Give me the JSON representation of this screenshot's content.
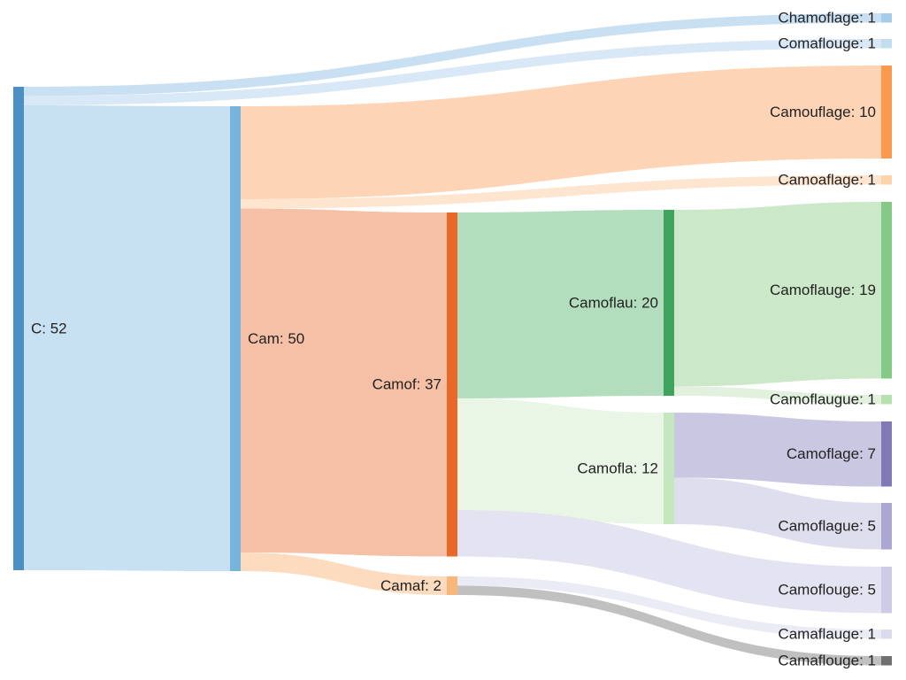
{
  "chart_data": {
    "type": "sankey",
    "title": "",
    "nodes": [
      {
        "id": "c",
        "label": "C: 52",
        "name": "C",
        "value": 52,
        "column": 0,
        "color": "#4a90c4"
      },
      {
        "id": "cam",
        "label": "Cam: 50",
        "name": "Cam",
        "value": 50,
        "column": 1,
        "color": "#76b4dc"
      },
      {
        "id": "chamoflage",
        "label": "Chamoflage: 1",
        "name": "Chamoflage",
        "value": 1,
        "column": 4,
        "color": "#a6cde8"
      },
      {
        "id": "comaflouge",
        "label": "Comaflouge: 1",
        "name": "Comaflouge",
        "value": 1,
        "column": 4,
        "color": "#c2dcf0"
      },
      {
        "id": "camouflage",
        "label": "Camouflage: 10",
        "name": "Camouflage",
        "value": 10,
        "column": 4,
        "color": "#fb9a4e"
      },
      {
        "id": "camoaflage",
        "label": "Camoaflage: 1",
        "name": "Camoaflage",
        "value": 1,
        "column": 4,
        "color": "#fdd3a9"
      },
      {
        "id": "camof",
        "label": "Camof: 37",
        "name": "Camof",
        "value": 37,
        "column": 2,
        "color": "#e8692a"
      },
      {
        "id": "camaf",
        "label": "Camaf: 2",
        "name": "Camaf",
        "value": 2,
        "column": 2,
        "color": "#f8b778"
      },
      {
        "id": "camoflau",
        "label": "Camoflau: 20",
        "name": "Camoflau",
        "value": 20,
        "column": 3,
        "color": "#3fa35d"
      },
      {
        "id": "camofla",
        "label": "Camofla: 12",
        "name": "Camofla",
        "value": 12,
        "column": 3,
        "color": "#c6e6c0"
      },
      {
        "id": "camoflauge",
        "label": "Camoflauge: 19",
        "name": "Camoflauge",
        "value": 19,
        "column": 4,
        "color": "#85c986"
      },
      {
        "id": "camoflaugue",
        "label": "Camoflaugue: 1",
        "name": "Camoflaugue",
        "value": 1,
        "column": 4,
        "color": "#b6e0b0"
      },
      {
        "id": "camoflage",
        "label": "Camoflage: 7",
        "name": "Camoflage",
        "value": 7,
        "column": 4,
        "color": "#8178b6"
      },
      {
        "id": "camoflague",
        "label": "Camoflague: 5",
        "name": "Camoflague",
        "value": 5,
        "column": 4,
        "color": "#aba7d1"
      },
      {
        "id": "camoflouge",
        "label": "Camoflouge: 5",
        "name": "Camoflouge",
        "value": 5,
        "column": 4,
        "color": "#cdcbe5"
      },
      {
        "id": "camaflauge",
        "label": "Camaflauge: 1",
        "name": "Camaflauge",
        "value": 1,
        "column": 4,
        "color": "#dcdbee"
      },
      {
        "id": "camaflouge",
        "label": "Camaflouge: 1",
        "name": "Camaflouge",
        "value": 1,
        "column": 4,
        "color": "#707070"
      }
    ],
    "links": [
      {
        "source": "c",
        "target": "chamoflage",
        "value": 1,
        "color": "#c6def1"
      },
      {
        "source": "c",
        "target": "comaflouge",
        "value": 1,
        "color": "#d7e7f5"
      },
      {
        "source": "c",
        "target": "cam",
        "value": 50,
        "color": "#c4dff1"
      },
      {
        "source": "cam",
        "target": "camouflage",
        "value": 10,
        "color": "#fdd3b2"
      },
      {
        "source": "cam",
        "target": "camoaflage",
        "value": 1,
        "color": "#fde4cc"
      },
      {
        "source": "cam",
        "target": "camof",
        "value": 37,
        "color": "#f5bda1"
      },
      {
        "source": "cam",
        "target": "camaf",
        "value": 2,
        "color": "#fdd9bb"
      },
      {
        "source": "camof",
        "target": "camoflau",
        "value": 20,
        "color": "#afdcbb"
      },
      {
        "source": "camof",
        "target": "camofla",
        "value": 12,
        "color": "#e8f4e4"
      },
      {
        "source": "camof",
        "target": "camoflouge",
        "value": 5,
        "color": "#e3e2f0"
      },
      {
        "source": "camoflau",
        "target": "camoflauge",
        "value": 19,
        "color": "#c8e7c6"
      },
      {
        "source": "camoflau",
        "target": "camoflaugue",
        "value": 1,
        "color": "#dff0dc"
      },
      {
        "source": "camofla",
        "target": "camoflage",
        "value": 7,
        "color": "#c7c4e2"
      },
      {
        "source": "camofla",
        "target": "camoflague",
        "value": 5,
        "color": "#dddcee"
      },
      {
        "source": "camaf",
        "target": "camaflauge",
        "value": 1,
        "color": "#eaeaf5"
      },
      {
        "source": "camaf",
        "target": "camaflouge",
        "value": 1,
        "color": "#bdbdbd"
      }
    ]
  }
}
